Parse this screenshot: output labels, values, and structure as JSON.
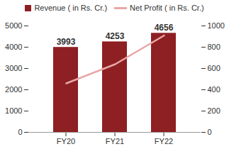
{
  "chart_data": {
    "type": "bar",
    "categories": [
      "FY20",
      "FY21",
      "FY22"
    ],
    "series": [
      {
        "name": "Revenue ( in Rs. Cr.)",
        "type": "bar",
        "color": "#8E1F22",
        "values": [
          3993,
          4253,
          4656
        ],
        "data_labels": true
      },
      {
        "name": "Net Profit ( in Rs. Cr.)",
        "type": "line",
        "color": "#E8A7A7",
        "axis": "y2",
        "values": [
          460,
          640,
          910
        ]
      }
    ],
    "ylim": [
      0,
      5000
    ],
    "yticks": [
      0,
      1000,
      2000,
      3000,
      4000,
      5000
    ],
    "y2lim": [
      0,
      1000
    ],
    "y2ticks": [
      0,
      200,
      400,
      600,
      800,
      1000
    ],
    "grid": false,
    "legend": "top"
  }
}
